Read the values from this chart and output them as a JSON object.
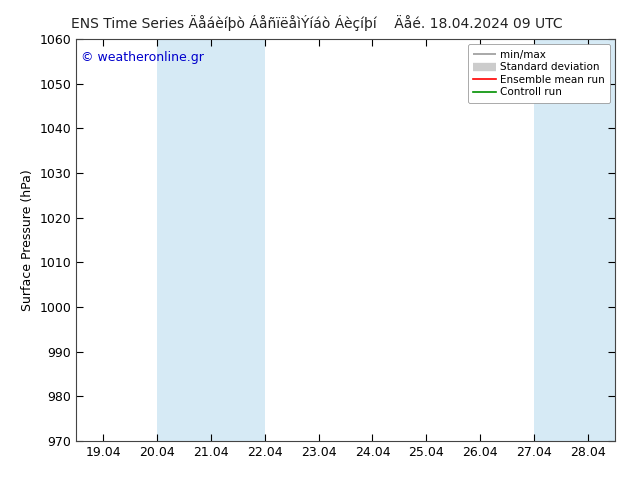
{
  "title_left": "ENS Time Series Äåáèíþò ÁåñïëåìÝíáò Áèçíþí",
  "title_right": "Äåé. 18.04.2024 09 UTC",
  "ylabel": "Surface Pressure (hPa)",
  "ylim": [
    970,
    1060
  ],
  "yticks": [
    970,
    980,
    990,
    1000,
    1010,
    1020,
    1030,
    1040,
    1050,
    1060
  ],
  "xlabels": [
    "19.04",
    "20.04",
    "21.04",
    "22.04",
    "23.04",
    "24.04",
    "25.04",
    "26.04",
    "27.04",
    "28.04"
  ],
  "x_positions": [
    0,
    1,
    2,
    3,
    4,
    5,
    6,
    7,
    8,
    9
  ],
  "xlim": [
    -0.5,
    9.5
  ],
  "shaded_regions": [
    {
      "xmin": 1.0,
      "xmax": 3.0
    },
    {
      "xmin": 8.0,
      "xmax": 9.5
    }
  ],
  "shade_color": "#d6eaf5",
  "background_color": "#ffffff",
  "plot_bg_color": "#ffffff",
  "watermark": "© weatheronline.gr",
  "watermark_color": "#0000cc",
  "legend_entries": [
    "min/max",
    "Standard deviation",
    "Ensemble mean run",
    "Controll run"
  ],
  "legend_line_colors": [
    "#999999",
    "#cccccc",
    "#ff0000",
    "#009000"
  ],
  "title_fontsize": 10,
  "axis_label_fontsize": 9,
  "tick_fontsize": 9,
  "watermark_fontsize": 9
}
